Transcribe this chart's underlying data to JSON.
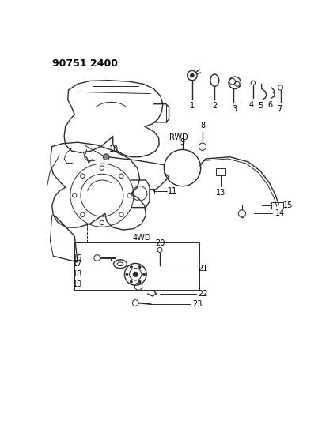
{
  "title": "90751 2400",
  "bg_color": "#ffffff",
  "line_color": "#2a2a2a",
  "label_color": "#000000",
  "fig_width": 4.07,
  "fig_height": 5.33,
  "dpi": 100
}
